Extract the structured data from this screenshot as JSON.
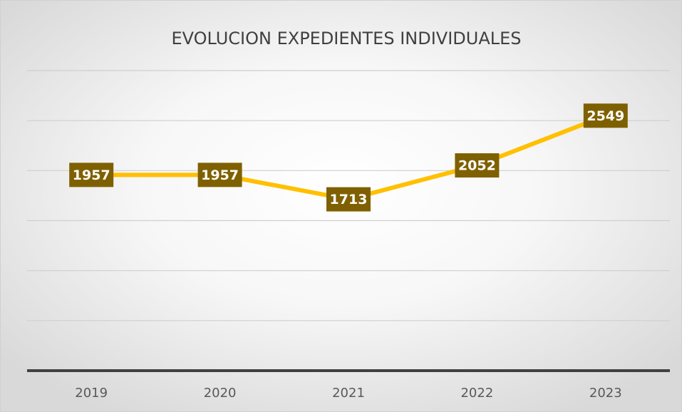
{
  "chart_data": {
    "type": "line",
    "title": "EVOLUCION EXPEDIENTES INDIVIDUALES",
    "categories": [
      "2019",
      "2020",
      "2021",
      "2022",
      "2023"
    ],
    "values": [
      1957,
      1957,
      1713,
      2052,
      2549
    ],
    "color": "#ffc000",
    "ylim": [
      0,
      3000
    ],
    "yticks": [
      0,
      500,
      1000,
      1500,
      2000,
      2500,
      3000
    ],
    "grid": true
  }
}
